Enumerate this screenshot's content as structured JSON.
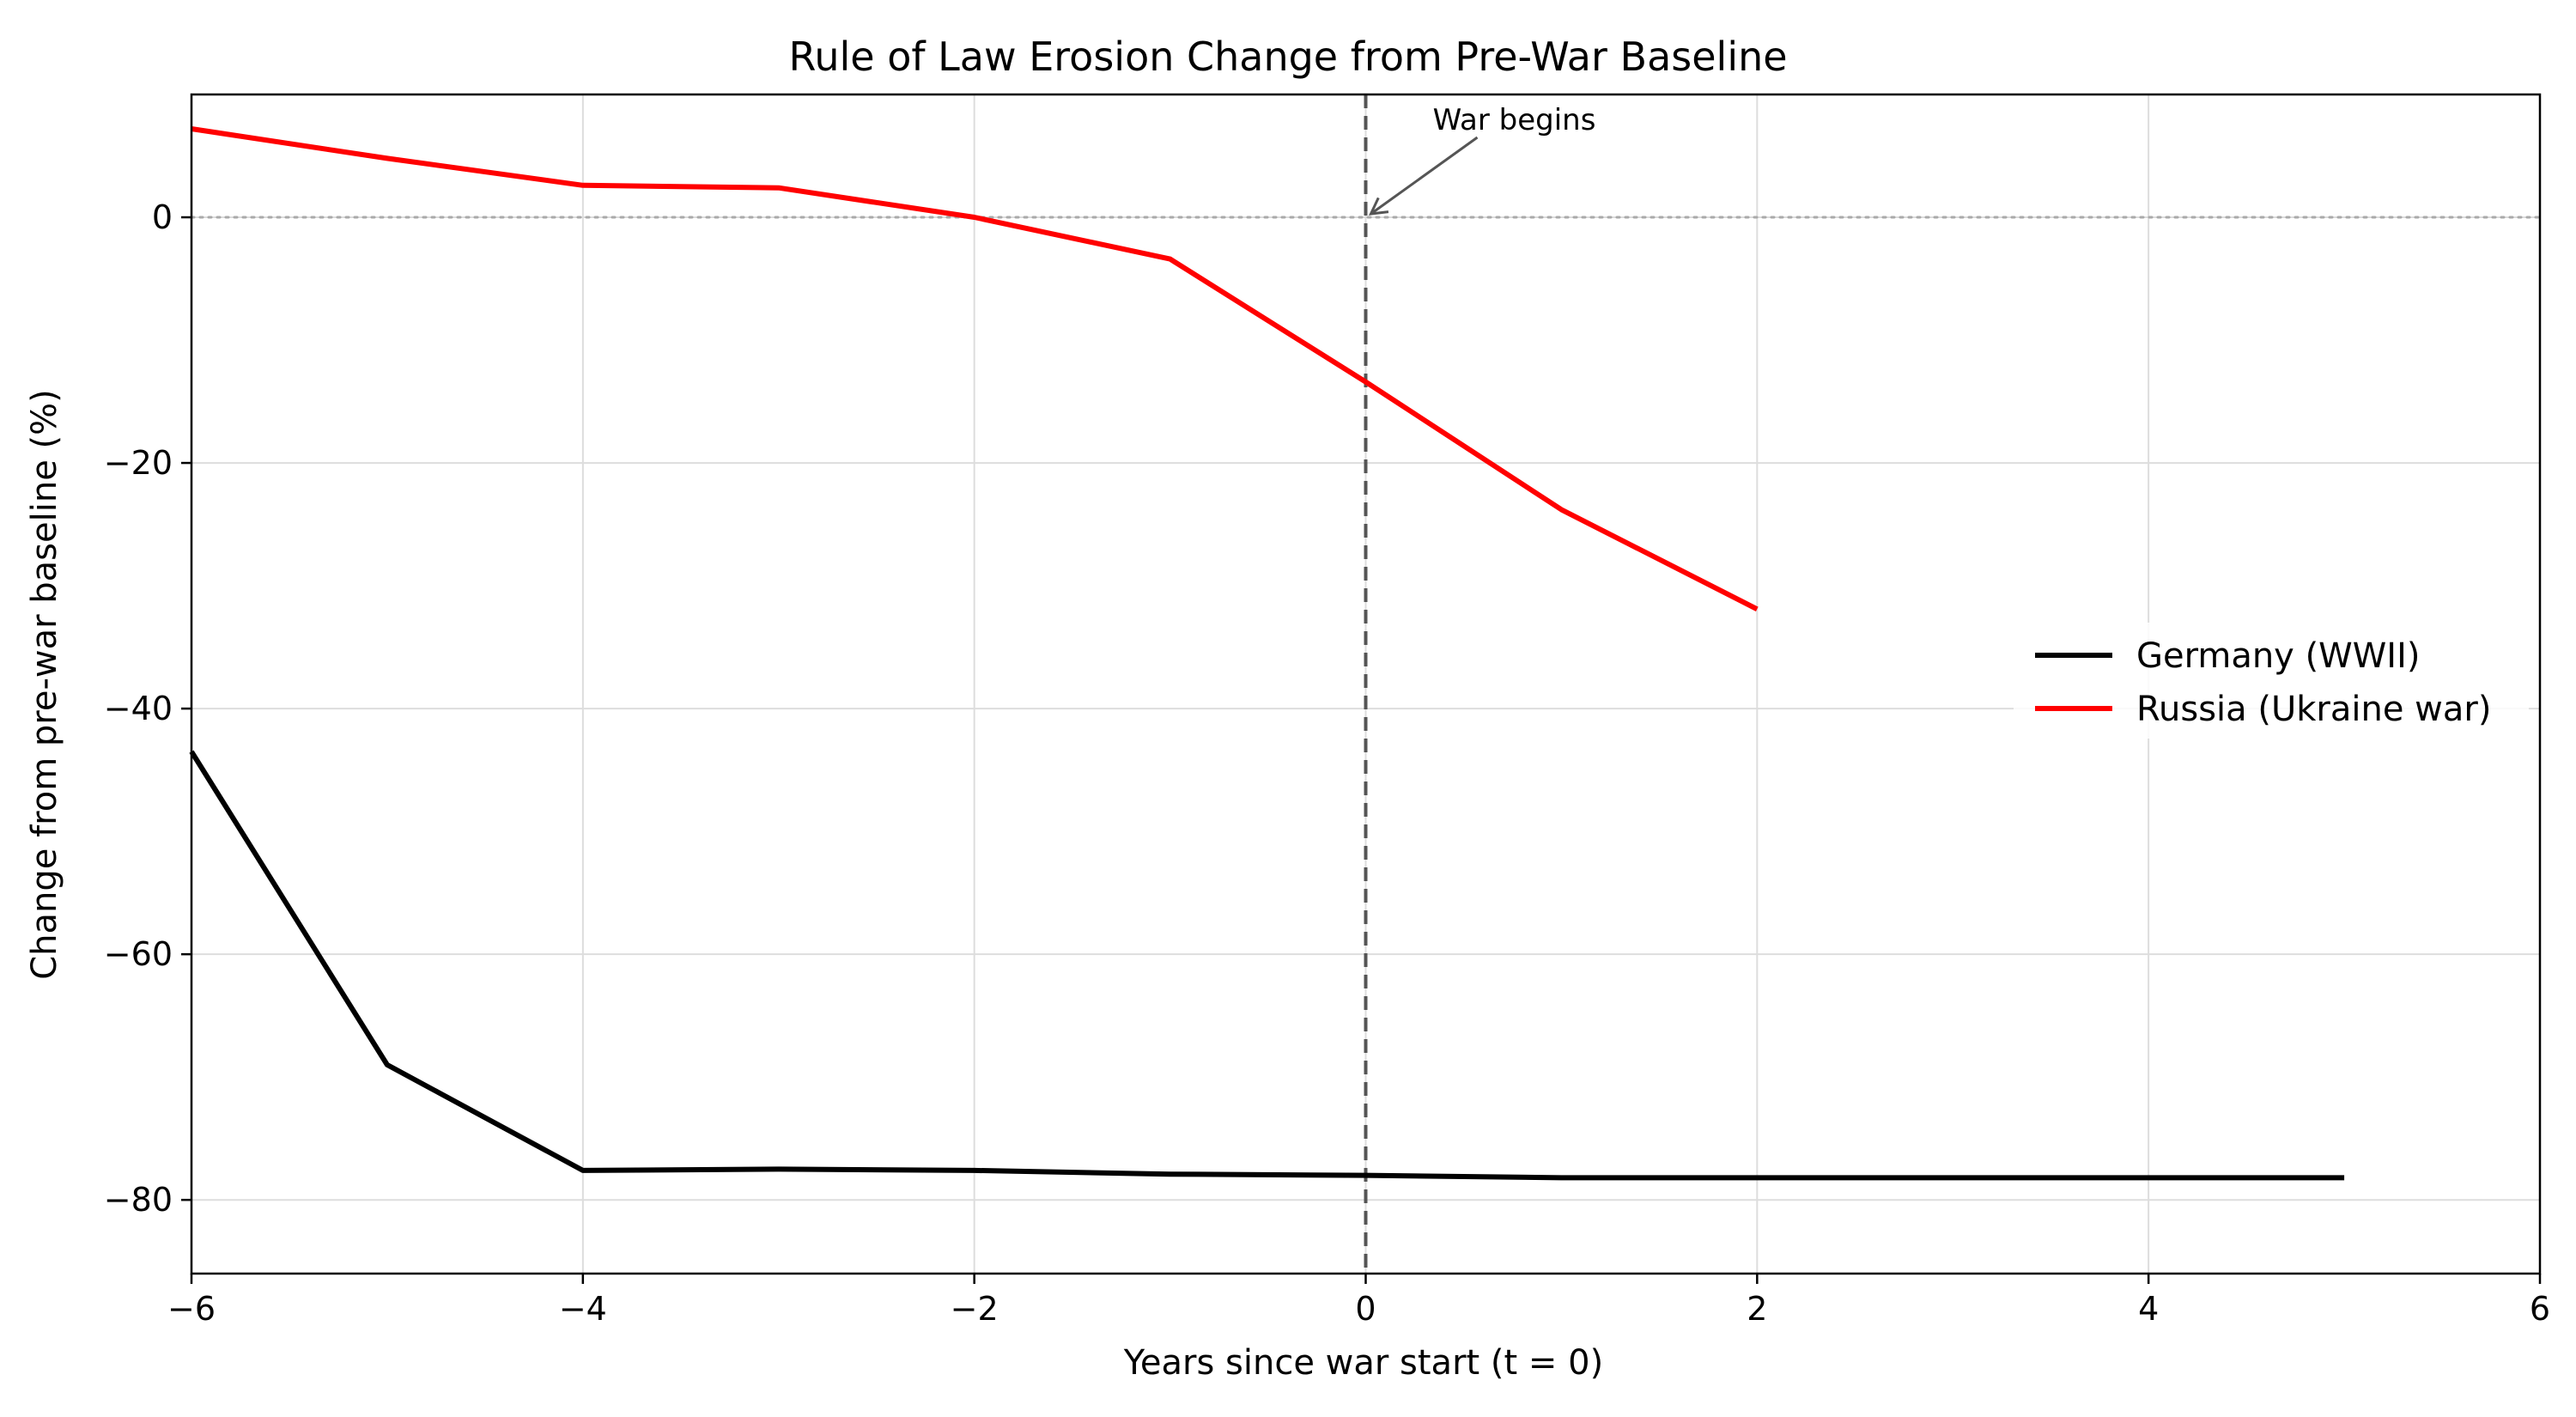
{
  "chart_data": {
    "type": "line",
    "title": "Rule of Law Erosion Change from Pre-War Baseline",
    "xlabel": "Years since war start (t = 0)",
    "ylabel": "Change from pre-war baseline (%)",
    "xlim": [
      -6,
      6
    ],
    "ylim": [
      -86,
      10
    ],
    "xticks": [
      -6,
      -4,
      -2,
      0,
      2,
      4,
      6
    ],
    "xtick_labels": [
      "−6",
      "−4",
      "−2",
      "0",
      "2",
      "4",
      "6"
    ],
    "yticks": [
      -80,
      -60,
      -40,
      -20,
      0
    ],
    "ytick_labels": [
      "−80",
      "−60",
      "−40",
      "−20",
      "0"
    ],
    "grid": true,
    "legend_position": "center-right",
    "series": [
      {
        "name": "Germany (WWII)",
        "color": "#000000",
        "x": [
          -6,
          -5,
          -4,
          -3,
          -2,
          -1,
          0,
          1,
          2,
          3,
          4,
          5
        ],
        "y": [
          -43.5,
          -69,
          -77.6,
          -77.5,
          -77.6,
          -77.9,
          -78.0,
          -78.2,
          -78.2,
          -78.2,
          -78.2,
          -78.2
        ]
      },
      {
        "name": "Russia (Ukraine war)",
        "color": "#ff0000",
        "x": [
          -6,
          -5,
          -4,
          -3,
          -2,
          -1,
          0,
          1,
          2
        ],
        "y": [
          7.2,
          4.8,
          2.6,
          2.4,
          0,
          -3.4,
          -13.4,
          -23.8,
          -31.9
        ]
      }
    ],
    "reference_lines": {
      "vertical_x": 0,
      "horizontal_y": 0
    },
    "annotation": {
      "text": "War begins",
      "x": 0,
      "y": 0
    }
  }
}
